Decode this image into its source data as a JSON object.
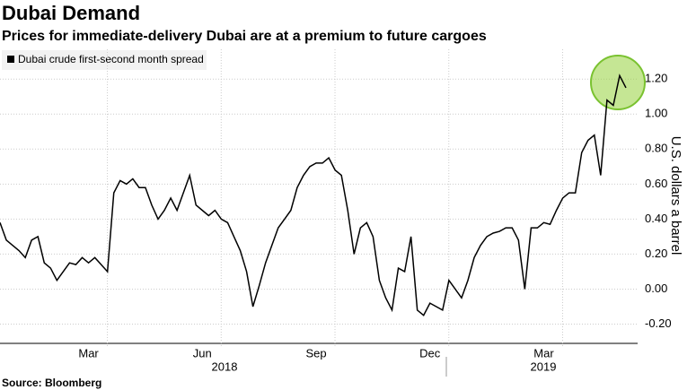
{
  "chart_data": {
    "type": "line",
    "title": "Dubai Demand",
    "subtitle": "Prices for immediate-delivery Dubai are at a premium to future cargoes",
    "source": "Source: Bloomberg",
    "y_label": "U.S. dollars a barrel",
    "x_groups": [
      "2018",
      "2019"
    ],
    "categories": [
      null,
      null,
      null,
      null,
      null,
      null,
      null,
      null,
      null,
      null,
      null,
      null,
      null,
      null,
      "Mar",
      null,
      null,
      null,
      null,
      null,
      null,
      null,
      null,
      null,
      null,
      null,
      null,
      null,
      null,
      null,
      null,
      null,
      "Jun",
      null,
      null,
      null,
      null,
      null,
      null,
      null,
      null,
      null,
      null,
      null,
      null,
      null,
      null,
      null,
      null,
      null,
      "Sep",
      null,
      null,
      null,
      null,
      null,
      null,
      null,
      null,
      null,
      null,
      null,
      null,
      null,
      null,
      null,
      null,
      null,
      "Dec",
      null,
      null,
      null,
      null,
      null,
      null,
      null,
      null,
      null,
      null,
      null,
      null,
      null,
      null,
      null,
      null,
      null,
      "Mar",
      null,
      null,
      null,
      null,
      null,
      null,
      null,
      null,
      null,
      null,
      null,
      null,
      null
    ],
    "series": [
      {
        "name": "Dubai crude first-second month spread",
        "color": "#000000",
        "values": [
          0.38,
          0.28,
          0.25,
          0.22,
          0.18,
          0.28,
          0.3,
          0.15,
          0.12,
          0.05,
          0.1,
          0.15,
          0.14,
          0.18,
          0.15,
          0.18,
          0.14,
          0.1,
          0.55,
          0.62,
          0.6,
          0.63,
          0.58,
          0.58,
          0.48,
          0.4,
          0.45,
          0.52,
          0.45,
          0.55,
          0.65,
          0.48,
          0.45,
          0.42,
          0.45,
          0.4,
          0.38,
          0.3,
          0.22,
          0.1,
          -0.1,
          0.02,
          0.15,
          0.25,
          0.35,
          0.4,
          0.45,
          0.58,
          0.65,
          0.7,
          0.72,
          0.72,
          0.75,
          0.68,
          0.65,
          0.45,
          0.2,
          0.35,
          0.38,
          0.3,
          0.05,
          -0.05,
          -0.12,
          0.12,
          0.1,
          0.3,
          -0.12,
          -0.15,
          -0.08,
          -0.1,
          -0.12,
          0.05,
          0.0,
          -0.05,
          0.05,
          0.18,
          0.25,
          0.3,
          0.32,
          0.33,
          0.35,
          0.35,
          0.28,
          0.0,
          0.35,
          0.35,
          0.38,
          0.37,
          0.45,
          0.52,
          0.55,
          0.55,
          0.78,
          0.85,
          0.88,
          0.65,
          1.08,
          1.05,
          1.22,
          1.15
        ]
      }
    ],
    "ylim": [
      -0.31,
      1.37
    ],
    "yticks": [
      {
        "value": -0.2,
        "label": "-0.20"
      },
      {
        "value": 0,
        "label": "0.00"
      },
      {
        "value": 0.2,
        "label": "0.20"
      },
      {
        "value": 0.4,
        "label": "0.40"
      },
      {
        "value": 0.6,
        "label": "0.60"
      },
      {
        "value": 0.8,
        "label": "0.80"
      },
      {
        "value": 1,
        "label": "1.00"
      },
      {
        "value": 1.2,
        "label": "1.20"
      }
    ],
    "grid": true
  }
}
